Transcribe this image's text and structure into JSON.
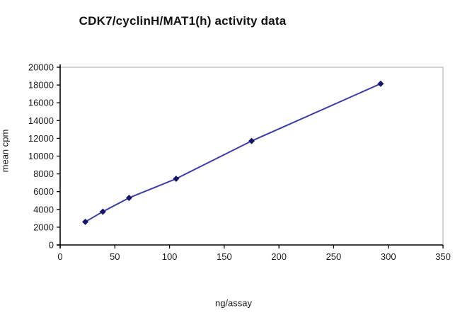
{
  "page": {
    "background": "#ffffff"
  },
  "chart_data": {
    "type": "line",
    "title": "CDK7/cyclinH/MAT1(h) activity data",
    "xlabel": "ng/assay",
    "ylabel": "mean cpm",
    "series": [
      {
        "name": "CDK7/cyclinH/MAT1(h)",
        "x": [
          23,
          39,
          63,
          106,
          175,
          293
        ],
        "y": [
          2600,
          3750,
          5300,
          7450,
          11700,
          18150
        ]
      }
    ],
    "xlim": [
      0,
      350
    ],
    "ylim": [
      0,
      20000
    ],
    "xticks": [
      0,
      50,
      100,
      150,
      200,
      250,
      300,
      350
    ],
    "yticks": [
      0,
      2000,
      4000,
      6000,
      8000,
      10000,
      12000,
      14000,
      16000,
      18000,
      20000
    ],
    "grid": false,
    "legend": "none",
    "marker": "diamond",
    "colors": {
      "line": "#3d3da5",
      "marker": "#16166b",
      "axis": "#000000",
      "plot_border": "#a9a9a9",
      "plot_background": "#ffffff"
    }
  }
}
